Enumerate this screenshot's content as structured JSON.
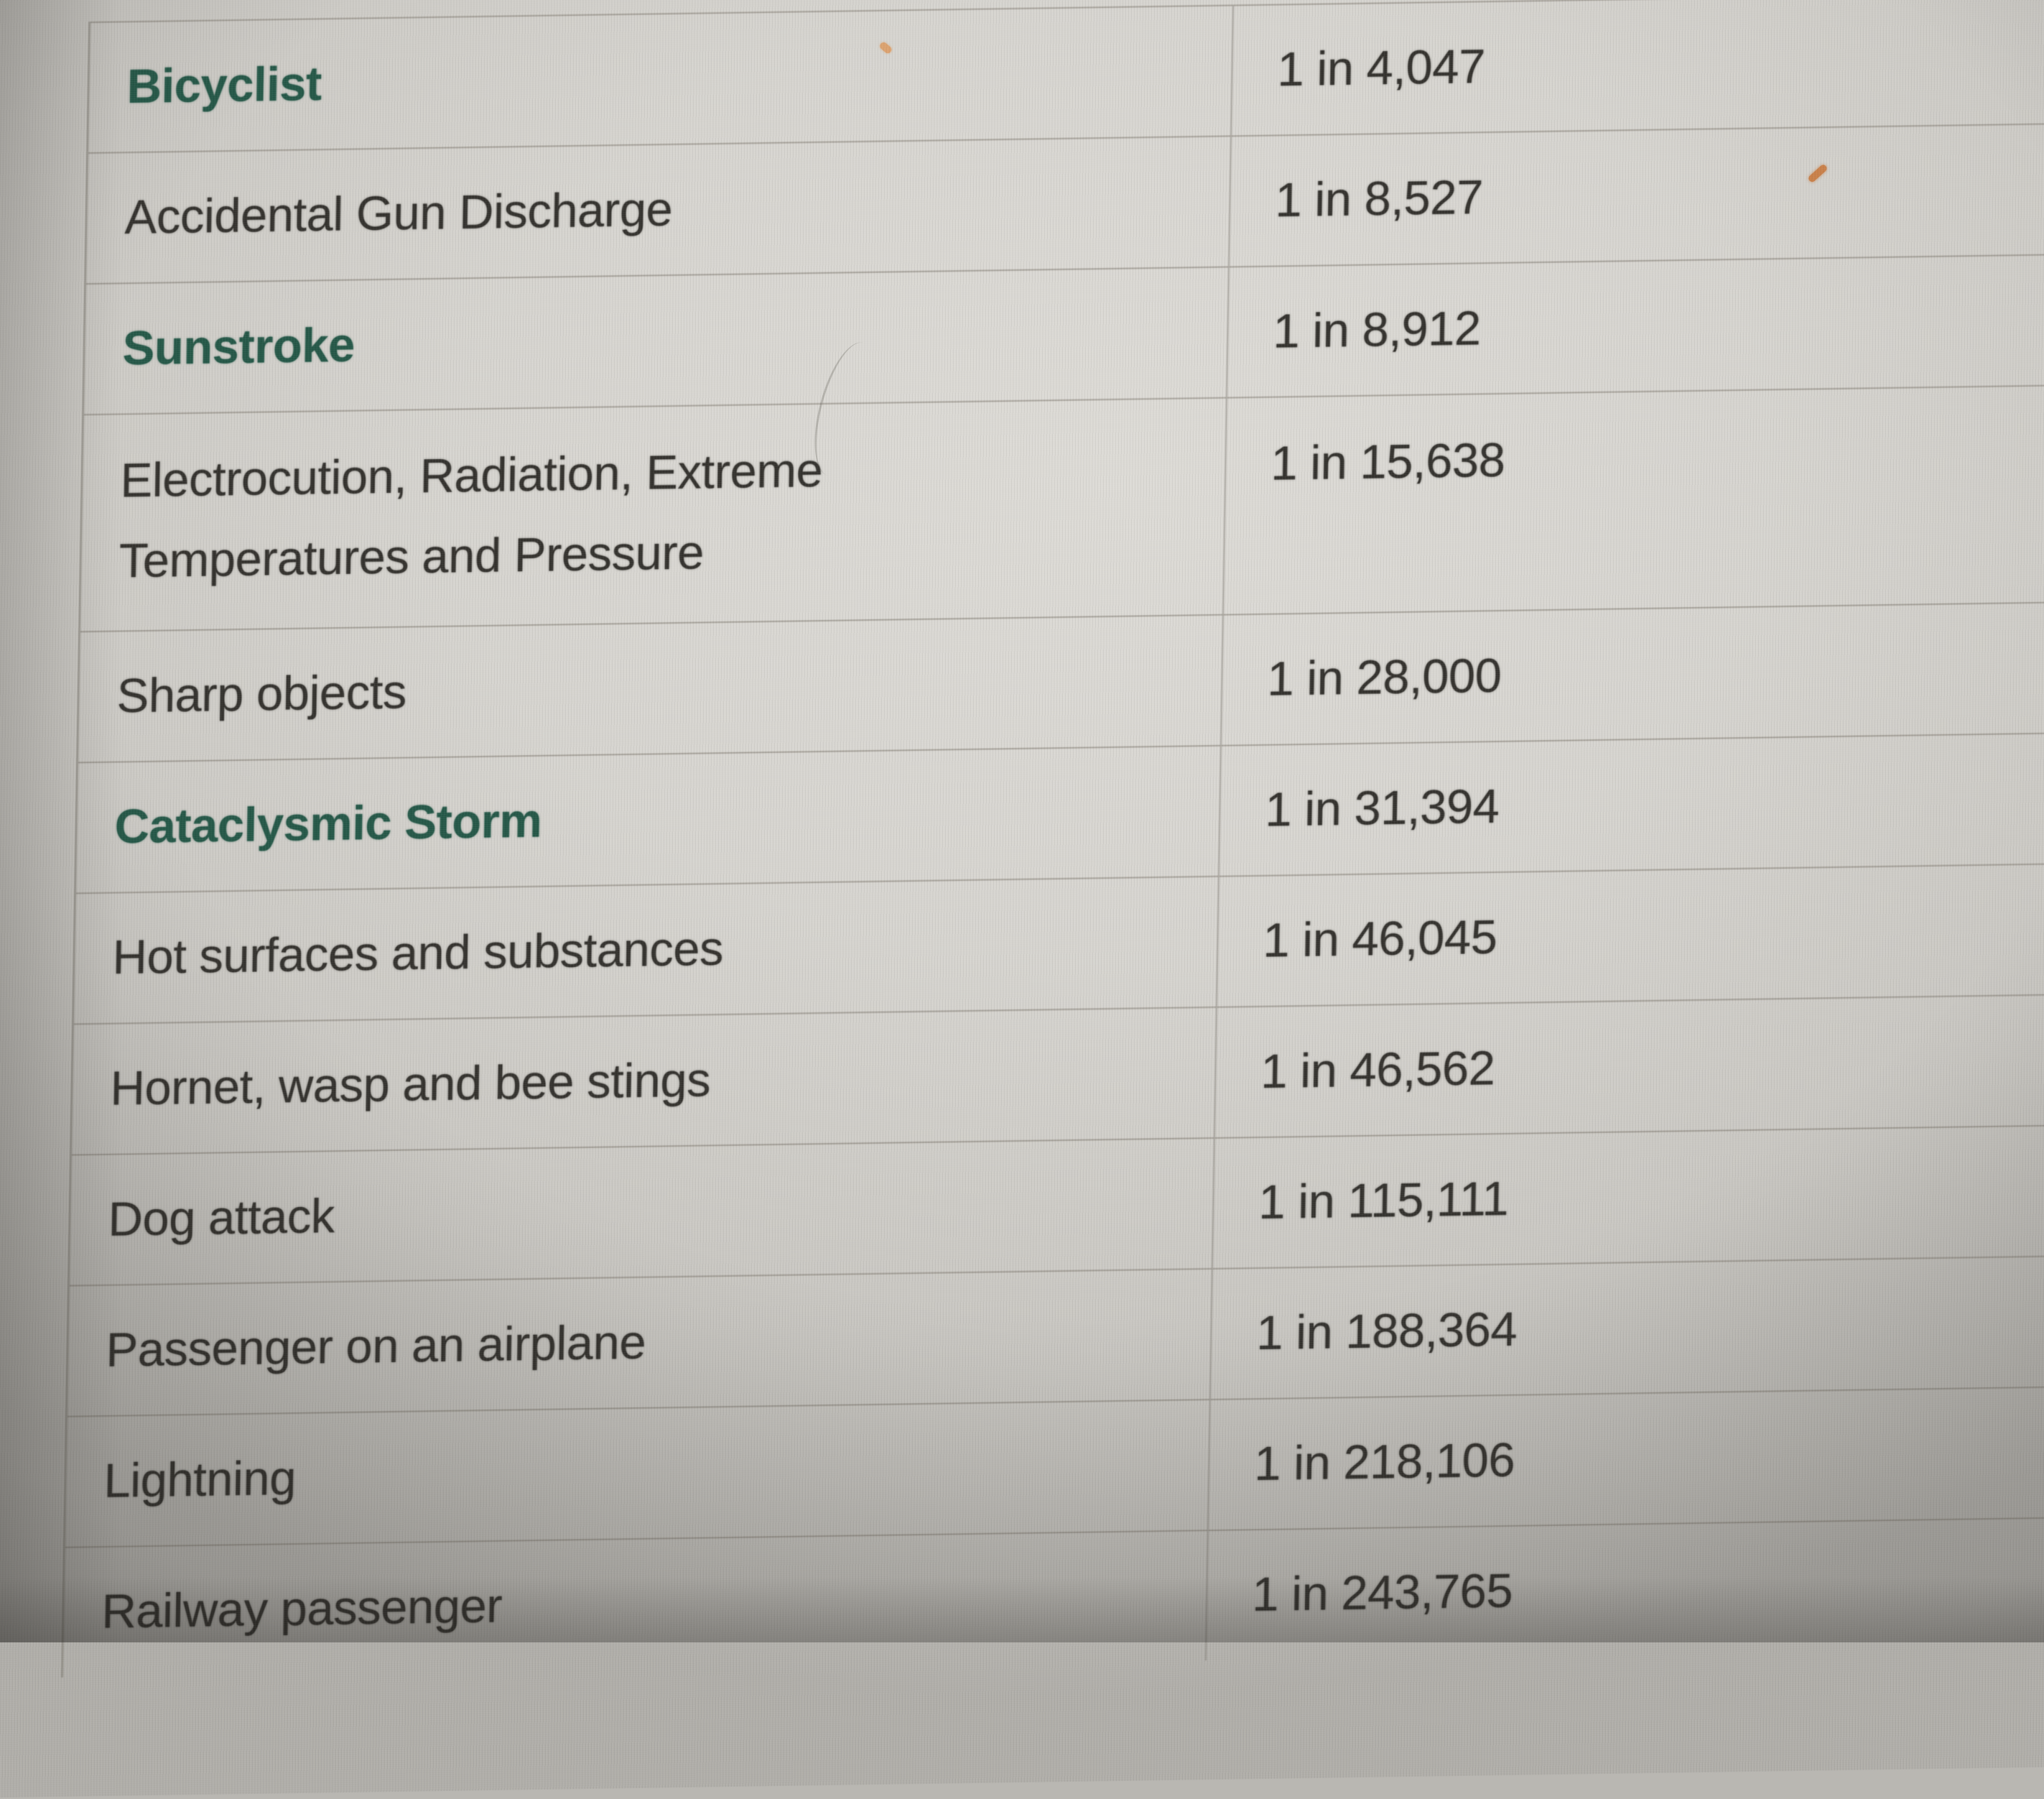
{
  "colors": {
    "link_green": "#245747",
    "text_ink": "#33312d",
    "row_separator": "#76716a",
    "screen_background": "#d6d4cf"
  },
  "table": {
    "rows": [
      {
        "label": "Bicyclist",
        "odds": "1 in 4,047",
        "emphasis": "green-link"
      },
      {
        "label": "Accidental Gun Discharge",
        "odds": "1 in 8,527",
        "emphasis": "plain"
      },
      {
        "label": "Sunstroke",
        "odds": "1 in 8,912",
        "emphasis": "green-link"
      },
      {
        "label": "Electrocution, Radiation, Extreme Temperatures and Pressure",
        "odds": "1 in 15,638",
        "emphasis": "plain"
      },
      {
        "label": "Sharp objects",
        "odds": "1 in 28,000",
        "emphasis": "plain"
      },
      {
        "label": "Cataclysmic Storm",
        "odds": "1 in 31,394",
        "emphasis": "green-link"
      },
      {
        "label": "Hot surfaces and substances",
        "odds": "1 in 46,045",
        "emphasis": "plain"
      },
      {
        "label": "Hornet, wasp and bee stings",
        "odds": "1 in 46,562",
        "emphasis": "plain"
      },
      {
        "label": "Dog attack",
        "odds": "1 in 115,111",
        "emphasis": "plain"
      },
      {
        "label": "Passenger on an airplane",
        "odds": "1 in 188,364",
        "emphasis": "plain"
      },
      {
        "label": "Lightning",
        "odds": "1 in 218,106",
        "emphasis": "plain"
      },
      {
        "label": "Railway passenger",
        "odds": "1 in 243,765",
        "emphasis": "plain"
      }
    ]
  }
}
